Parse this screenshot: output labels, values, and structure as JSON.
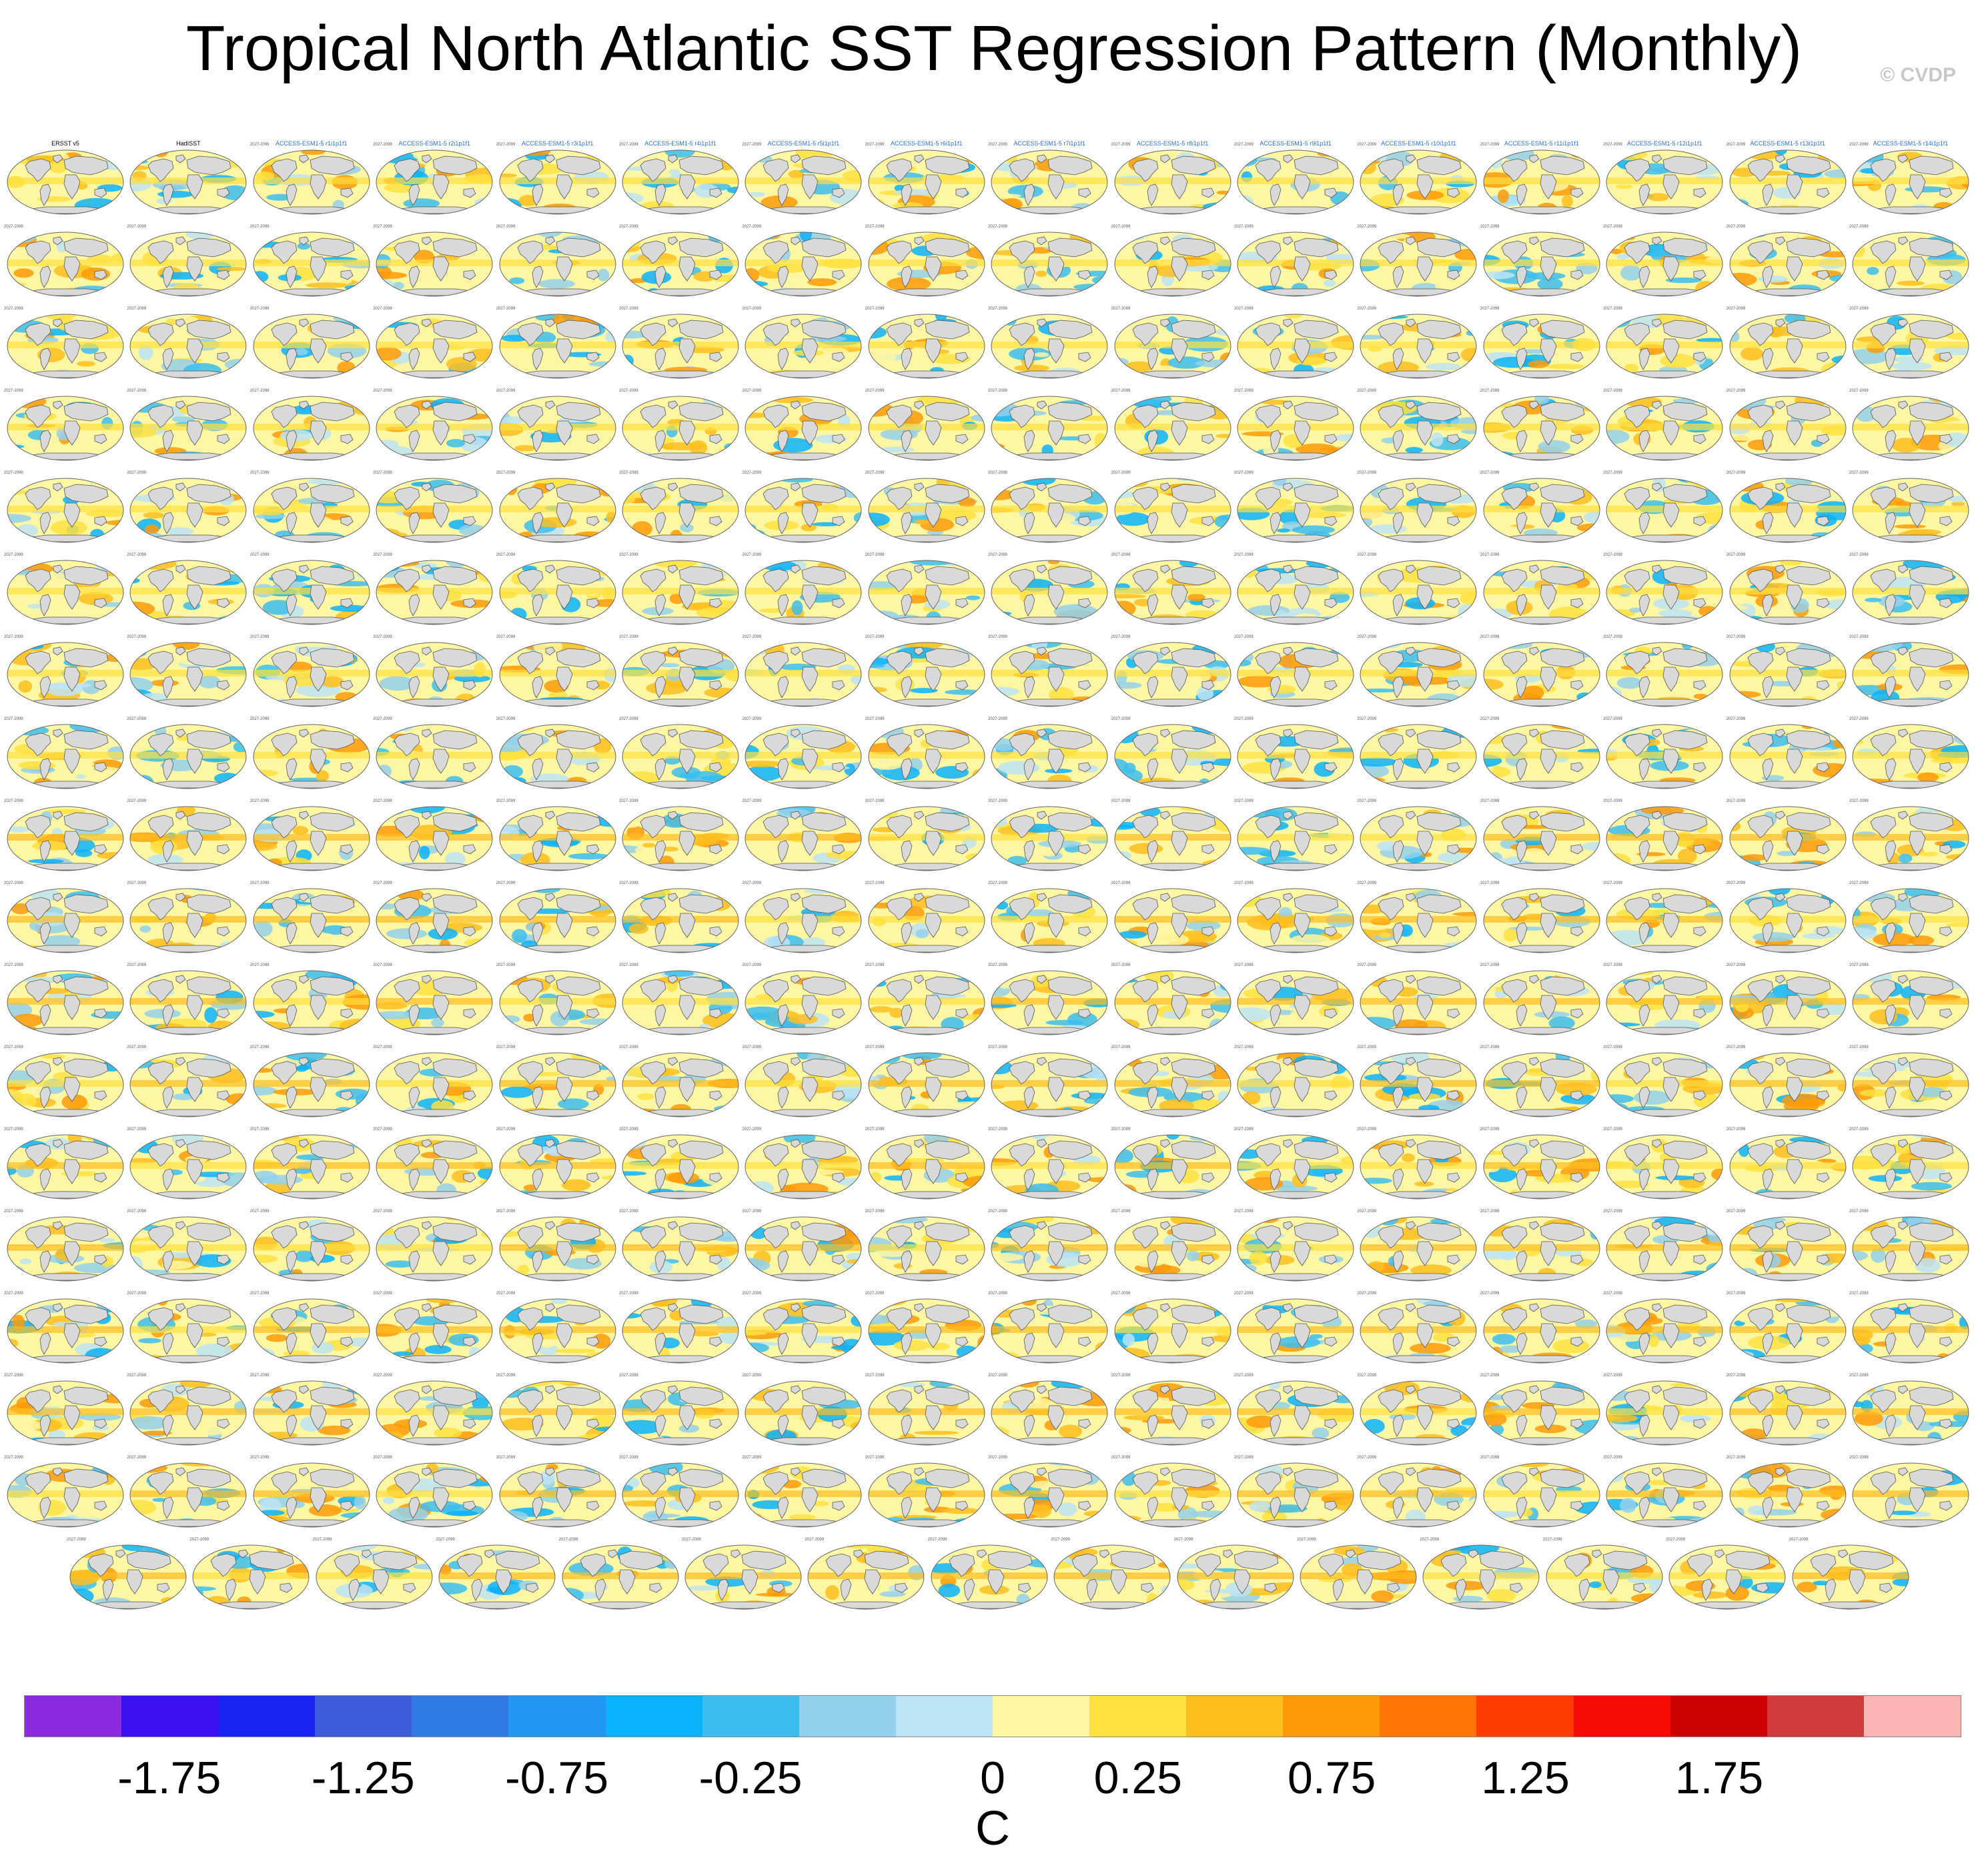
{
  "title": "Tropical North Atlantic SST Regression Pattern (Monthly)",
  "watermark": "© CVDP",
  "panel_titles_first_row": [
    "ERSST v5",
    "HadISST",
    "ACCESS-ESM1-5 r1i1p1f1",
    "ACCESS-ESM1-5 r2i1p1f1",
    "ACCESS-ESM1-5 r3i1p1f1",
    "ACCESS-ESM1-5 r4i1p1f1",
    "ACCESS-ESM1-5 r5i1p1f1",
    "ACCESS-ESM1-5 r6i1p1f1",
    "ACCESS-ESM1-5 r7i1p1f1",
    "ACCESS-ESM1-5 r8i1p1f1",
    "ACCESS-ESM1-5 r9i1p1f1",
    "ACCESS-ESM1-5 r10i1p1f1",
    "ACCESS-ESM1-5 r11i1p1f1",
    "ACCESS-ESM1-5 r12i1p1f1",
    "ACCESS-ESM1-5 r13i1p1f1",
    "ACCESS-ESM1-5 r14i1p1f1"
  ],
  "panel_years": "2027-2099",
  "colors": {
    "land": "#d9d9d9",
    "coast": "#555555",
    "ocean_base": "#fdf6a3"
  },
  "colorbar": {
    "colors": [
      "#8a2be2",
      "#3a0ff0",
      "#1a24f2",
      "#3a5bdc",
      "#2f7ae3",
      "#2196f3",
      "#0ab2fb",
      "#3cbdf0",
      "#93d0ec",
      "#bde3f5",
      "#fef6a1",
      "#fee03f",
      "#febe1e",
      "#fe9a08",
      "#fe7405",
      "#fe3c02",
      "#f50a04",
      "#cc0000",
      "#d03a3a",
      "#fbb5b5"
    ],
    "tick_labels": [
      "-1.75",
      "-1.25",
      "-0.75",
      "-0.25",
      "0",
      "0.25",
      "0.75",
      "1.25",
      "1.75"
    ],
    "units": "C"
  }
}
